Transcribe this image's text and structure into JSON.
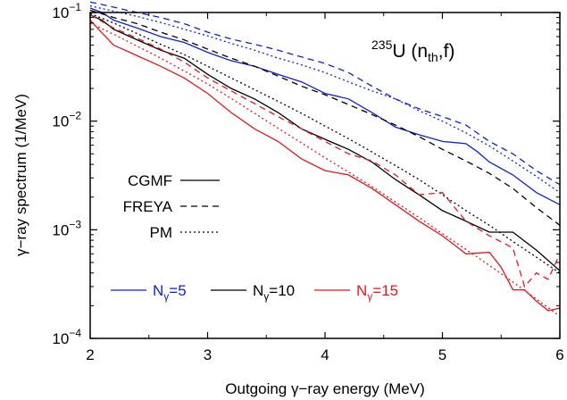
{
  "chart_data": {
    "type": "line",
    "title": {
      "nucleus": "U",
      "mass": "235",
      "reaction_open": " (n",
      "reaction_sub": "th",
      "reaction_close": ",f)"
    },
    "xlabel": "Outgoing γ−ray energy (MeV)",
    "ylabel": "γ−ray spectrum (1/MeV)",
    "xlim": [
      2,
      6
    ],
    "ylim": [
      0.0001,
      0.1
    ],
    "yscale": "log",
    "grid": false,
    "x_ticks": [
      "2",
      "3",
      "4",
      "5",
      "6"
    ],
    "y_ticks": [
      {
        "value": 0.1,
        "base": "10",
        "exp": "−1"
      },
      {
        "value": 0.01,
        "base": "10",
        "exp": "−2"
      },
      {
        "value": 0.001,
        "base": "10",
        "exp": "−3"
      },
      {
        "value": 0.0001,
        "base": "10",
        "exp": "−4"
      }
    ],
    "style_legend": [
      {
        "label": "CGMF",
        "dash": "solid"
      },
      {
        "label": "FREYA",
        "dash": "dashed"
      },
      {
        "label": "PM",
        "dash": "dotted"
      }
    ],
    "color_legend": [
      {
        "group": "5",
        "prefix": "N",
        "sub": "γ",
        "suffix": "=5",
        "color": "#0b22d6"
      },
      {
        "group": "10",
        "prefix": "N",
        "sub": "γ",
        "suffix": "=10",
        "color": "#000000"
      },
      {
        "group": "15",
        "prefix": "N",
        "sub": "γ",
        "suffix": "=15",
        "color": "#e8141c"
      }
    ],
    "series": [
      {
        "group": "5",
        "model": "CGMF",
        "color": "#0b22d6",
        "dash": "solid",
        "x": [
          2.0,
          2.1,
          2.2,
          2.4,
          2.6,
          2.8,
          3.0,
          3.2,
          3.4,
          3.6,
          3.8,
          4.0,
          4.2,
          4.4,
          4.6,
          4.8,
          5.0,
          5.2,
          5.3,
          5.4,
          5.6,
          5.8,
          6.0
        ],
        "y": [
          0.11,
          0.1,
          0.085,
          0.072,
          0.06,
          0.053,
          0.043,
          0.036,
          0.032,
          0.027,
          0.023,
          0.018,
          0.016,
          0.012,
          0.0088,
          0.0075,
          0.0065,
          0.0062,
          0.0052,
          0.0042,
          0.0032,
          0.0022,
          0.0017
        ]
      },
      {
        "group": "5",
        "model": "FREYA",
        "color": "#0b22d6",
        "dash": "dashed",
        "x": [
          2.0,
          2.2,
          2.4,
          2.6,
          2.8,
          3.0,
          3.2,
          3.4,
          3.6,
          3.8,
          4.0,
          4.2,
          4.4,
          4.6,
          4.8,
          5.0,
          5.2,
          5.4,
          5.6,
          5.8,
          6.0
        ],
        "y": [
          0.125,
          0.112,
          0.1,
          0.09,
          0.079,
          0.066,
          0.057,
          0.051,
          0.045,
          0.039,
          0.034,
          0.028,
          0.021,
          0.016,
          0.013,
          0.011,
          0.0092,
          0.0065,
          0.005,
          0.0035,
          0.0026
        ]
      },
      {
        "group": "5",
        "model": "PM",
        "color": "#0b22d6",
        "dash": "dotted",
        "x": [
          2.0,
          2.2,
          2.4,
          2.6,
          2.8,
          3.0,
          3.2,
          3.4,
          3.6,
          3.8,
          4.0,
          4.2,
          4.4,
          4.6,
          4.8,
          5.0,
          5.2,
          5.4,
          5.6,
          5.8,
          6.0
        ],
        "y": [
          0.115,
          0.103,
          0.092,
          0.081,
          0.07,
          0.061,
          0.052,
          0.045,
          0.038,
          0.033,
          0.028,
          0.023,
          0.019,
          0.016,
          0.0125,
          0.01,
          0.0078,
          0.0059,
          0.0043,
          0.0031,
          0.0022
        ]
      },
      {
        "group": "10",
        "model": "CGMF",
        "color": "#000000",
        "dash": "solid",
        "x": [
          2.0,
          2.1,
          2.2,
          2.4,
          2.6,
          2.8,
          3.0,
          3.2,
          3.4,
          3.6,
          3.8,
          4.0,
          4.2,
          4.4,
          4.6,
          4.8,
          5.0,
          5.2,
          5.4,
          5.6,
          5.8,
          6.0
        ],
        "y": [
          0.095,
          0.085,
          0.07,
          0.056,
          0.045,
          0.038,
          0.027,
          0.02,
          0.016,
          0.012,
          0.0085,
          0.0068,
          0.0055,
          0.0042,
          0.0029,
          0.0021,
          0.0015,
          0.0012,
          0.00095,
          0.00095,
          0.00065,
          0.00042
        ]
      },
      {
        "group": "10",
        "model": "FREYA",
        "color": "#000000",
        "dash": "dashed",
        "x": [
          2.0,
          2.2,
          2.4,
          2.6,
          2.8,
          3.0,
          3.2,
          3.4,
          3.6,
          3.8,
          4.0,
          4.2,
          4.4,
          4.6,
          4.8,
          5.0,
          5.2,
          5.4,
          5.6,
          5.8,
          6.0
        ],
        "y": [
          0.105,
          0.09,
          0.079,
          0.066,
          0.056,
          0.046,
          0.038,
          0.032,
          0.026,
          0.021,
          0.0175,
          0.0142,
          0.0115,
          0.0092,
          0.0072,
          0.0055,
          0.0043,
          0.0033,
          0.0024,
          0.0016,
          0.0011
        ]
      },
      {
        "group": "10",
        "model": "PM",
        "color": "#000000",
        "dash": "dotted",
        "x": [
          2.0,
          2.2,
          2.4,
          2.6,
          2.8,
          3.0,
          3.2,
          3.4,
          3.6,
          3.8,
          4.0,
          4.2,
          4.4,
          4.6,
          4.8,
          5.0,
          5.2,
          5.4,
          5.6,
          5.8,
          6.0
        ],
        "y": [
          0.098,
          0.08,
          0.064,
          0.051,
          0.041,
          0.032,
          0.025,
          0.0195,
          0.0152,
          0.0118,
          0.009,
          0.0069,
          0.0052,
          0.0039,
          0.0029,
          0.0021,
          0.0015,
          0.0011,
          0.00078,
          0.00056,
          0.0004
        ]
      },
      {
        "group": "15",
        "model": "CGMF",
        "color": "#e8141c",
        "dash": "solid",
        "x": [
          2.0,
          2.1,
          2.2,
          2.4,
          2.6,
          2.8,
          3.0,
          3.2,
          3.4,
          3.6,
          3.8,
          4.0,
          4.2,
          4.4,
          4.6,
          4.8,
          5.0,
          5.2,
          5.4,
          5.5,
          5.6,
          5.7,
          5.8,
          5.9,
          6.0
        ],
        "y": [
          0.085,
          0.065,
          0.05,
          0.04,
          0.032,
          0.025,
          0.018,
          0.012,
          0.0085,
          0.0065,
          0.0045,
          0.0035,
          0.0032,
          0.0024,
          0.0017,
          0.0012,
          0.00088,
          0.0006,
          0.00062,
          0.00045,
          0.00028,
          0.00028,
          0.00022,
          0.00018,
          0.00019
        ]
      },
      {
        "group": "15",
        "model": "FREYA",
        "color": "#e8141c",
        "dash": "dashed",
        "x": [
          2.0,
          2.2,
          2.4,
          2.6,
          2.8,
          3.0,
          3.2,
          3.4,
          3.6,
          3.8,
          4.0,
          4.2,
          4.4,
          4.6,
          4.8,
          5.0,
          5.2,
          5.4,
          5.6,
          5.7,
          5.8,
          5.9,
          6.0
        ],
        "y": [
          0.095,
          0.072,
          0.058,
          0.046,
          0.035,
          0.025,
          0.019,
          0.0145,
          0.011,
          0.0085,
          0.0065,
          0.005,
          0.0043,
          0.0032,
          0.0021,
          0.0022,
          0.0012,
          0.00088,
          0.00068,
          0.0003,
          0.0004,
          0.00035,
          0.0006
        ]
      },
      {
        "group": "15",
        "model": "PM",
        "color": "#e8141c",
        "dash": "dotted",
        "x": [
          2.0,
          2.2,
          2.4,
          2.6,
          2.8,
          3.0,
          3.2,
          3.4,
          3.6,
          3.8,
          4.0,
          4.2,
          4.4,
          4.6,
          4.8,
          5.0,
          5.2,
          5.4,
          5.6,
          5.8,
          6.0
        ],
        "y": [
          0.08,
          0.063,
          0.049,
          0.038,
          0.029,
          0.022,
          0.0162,
          0.0118,
          0.0086,
          0.0063,
          0.0046,
          0.0034,
          0.0025,
          0.0018,
          0.0013,
          0.00092,
          0.00066,
          0.00047,
          0.00033,
          0.00023,
          0.00016
        ]
      }
    ]
  }
}
